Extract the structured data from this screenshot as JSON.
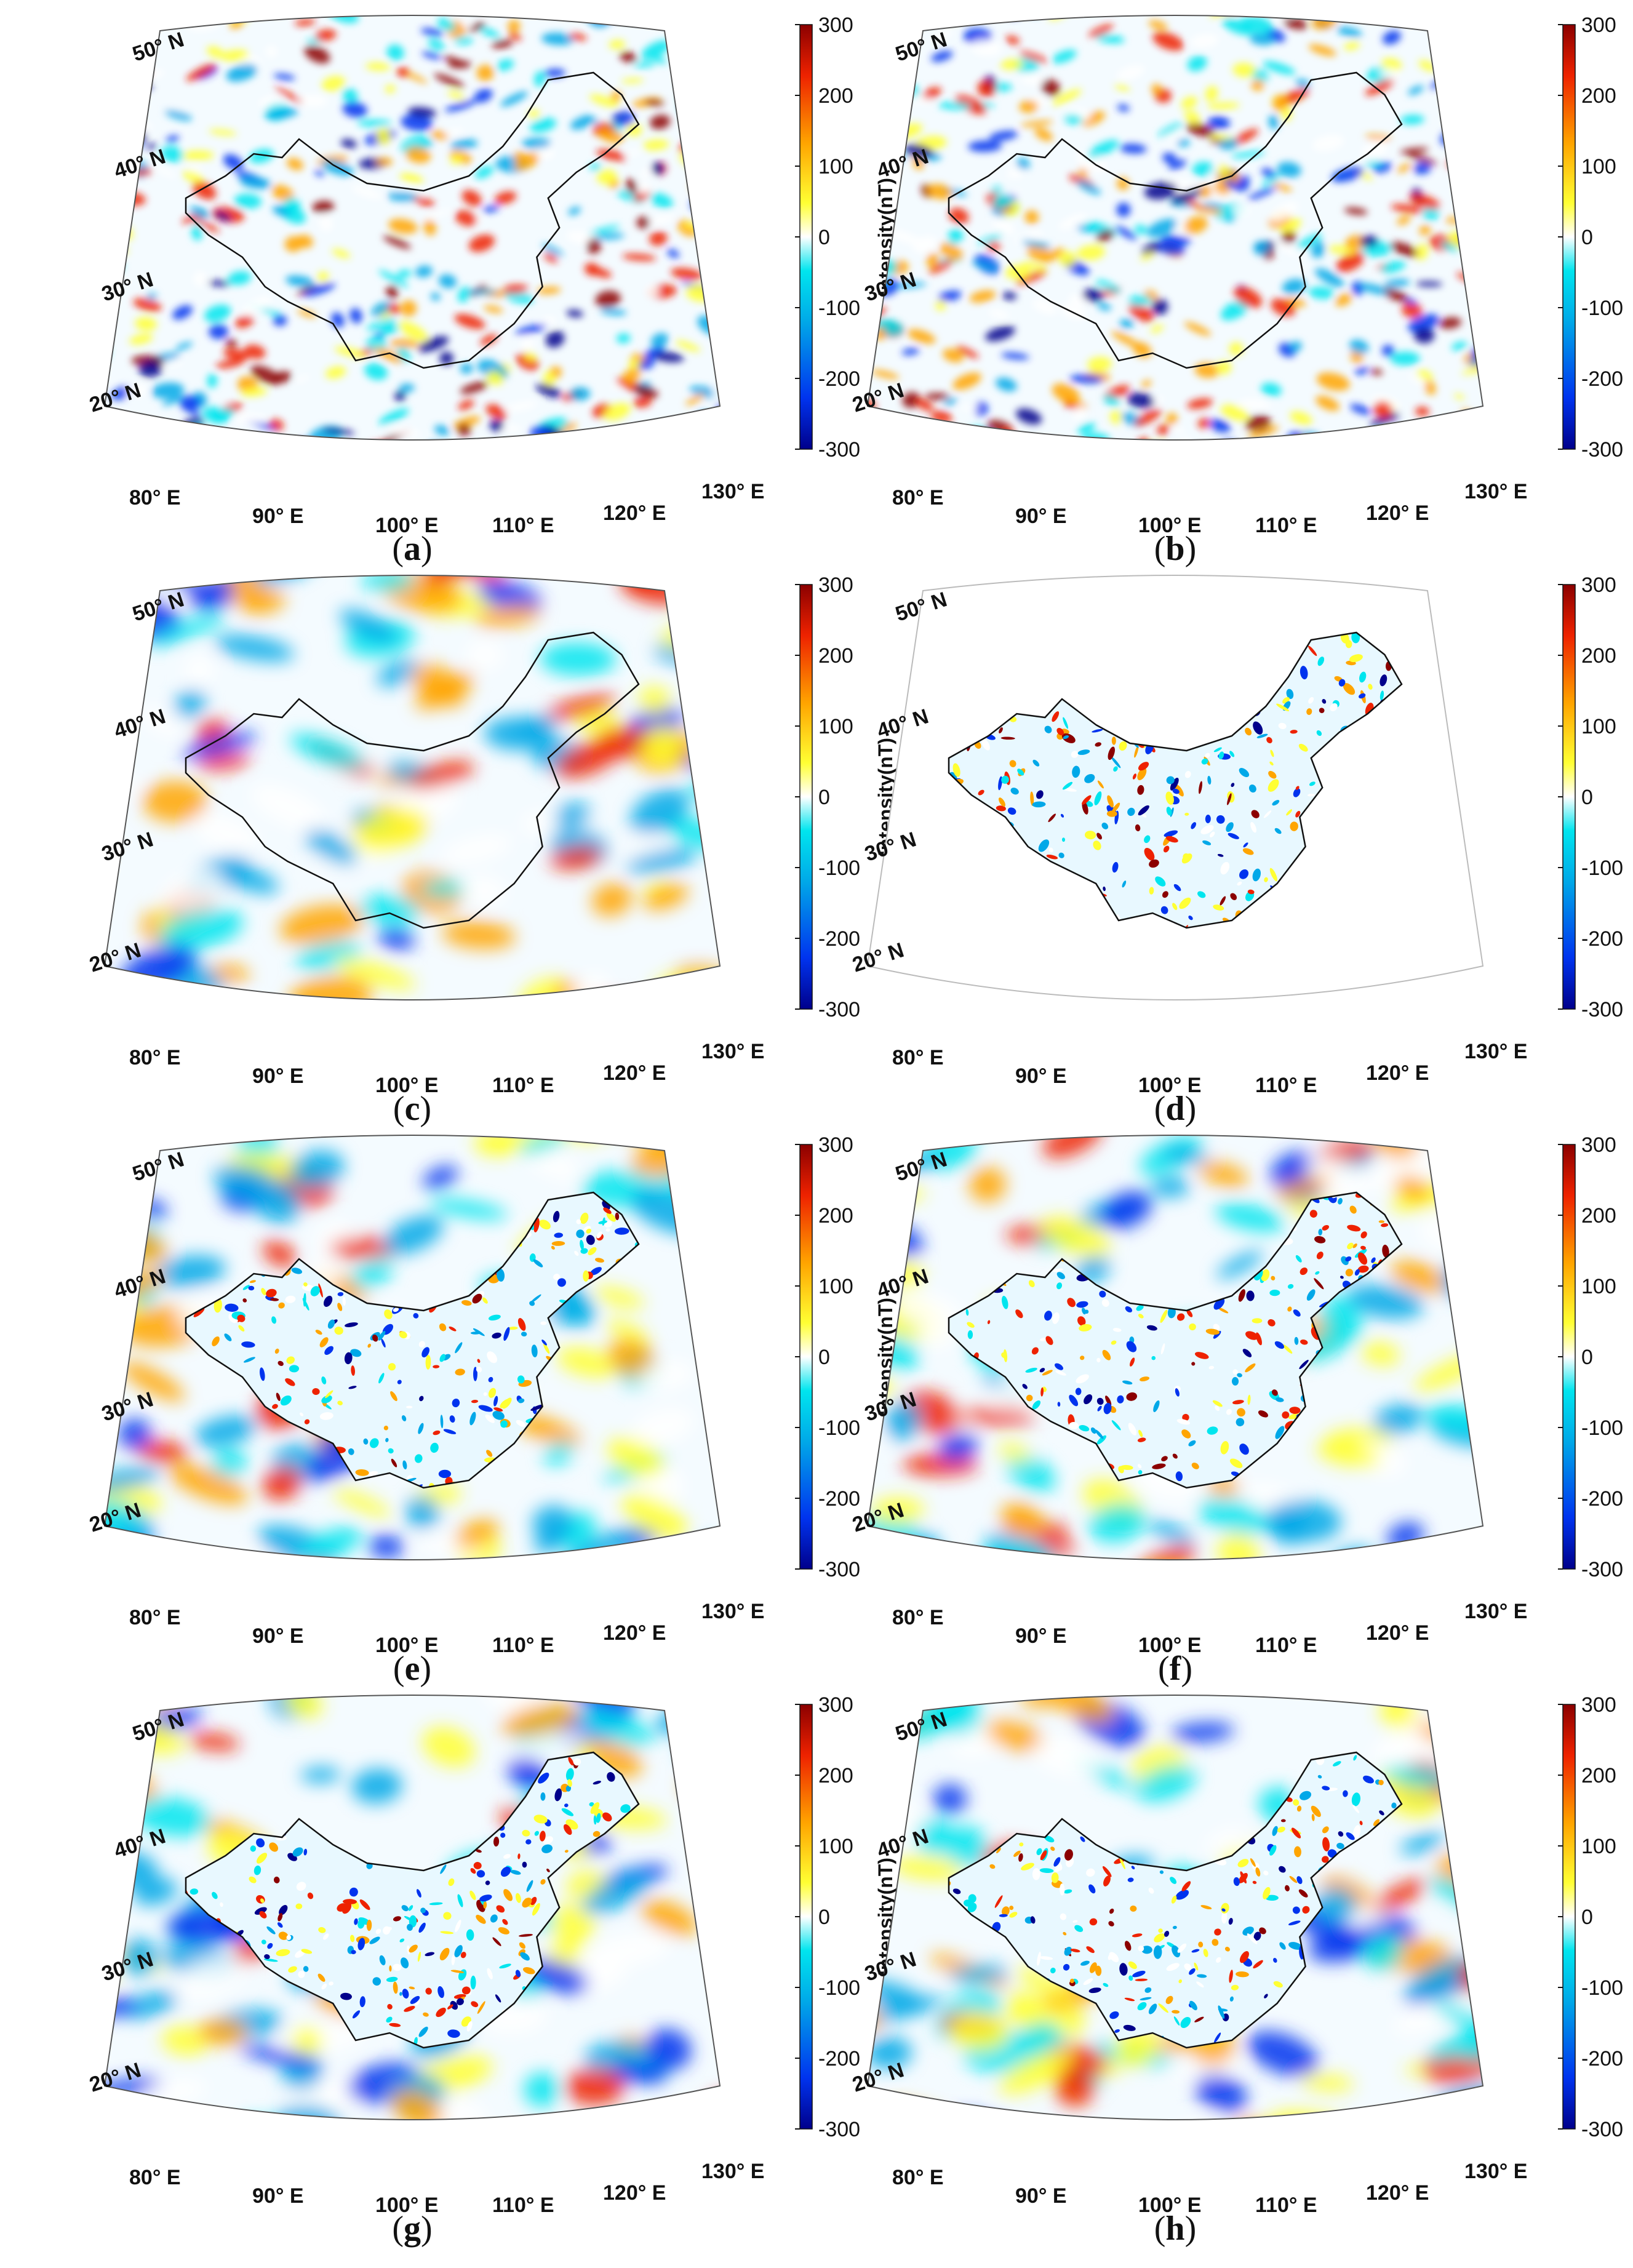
{
  "colorbar": {
    "title": "Intensity(nT)",
    "ticks": [
      "300",
      "200",
      "100",
      "0",
      "-100",
      "-200",
      "-300"
    ],
    "min": -300,
    "max": 300,
    "colors": [
      "#00008b",
      "#0033ee",
      "#00a8e8",
      "#00e5ee",
      "#ffffff",
      "#ffff33",
      "#ffa500",
      "#ee2200",
      "#8b0000"
    ]
  },
  "axes": {
    "lat_labels": [
      "50° N",
      "40° N",
      "30° N",
      "20° N"
    ],
    "lon_labels": [
      "80° E",
      "90° E",
      "100° E",
      "110° E",
      "120° E",
      "130° E"
    ]
  },
  "panels": [
    {
      "id": "a",
      "open": "(",
      "letter": "a",
      "close": ")",
      "style": "noisy"
    },
    {
      "id": "b",
      "open": "(",
      "letter": "b",
      "close": ")",
      "style": "noisy"
    },
    {
      "id": "c",
      "open": "(",
      "letter": "c",
      "close": ")",
      "style": "smooth"
    },
    {
      "id": "d",
      "open": "(",
      "letter": "d",
      "close": ")",
      "style": "china-only"
    },
    {
      "id": "e",
      "open": "(",
      "letter": "e",
      "close": ")",
      "style": "combined"
    },
    {
      "id": "f",
      "open": "(",
      "letter": "f",
      "close": ")",
      "style": "combined"
    },
    {
      "id": "g",
      "open": "(",
      "letter": "g",
      "close": ")",
      "style": "combined"
    },
    {
      "id": "h",
      "open": "(",
      "letter": "h",
      "close": ")",
      "style": "combined"
    }
  ]
}
